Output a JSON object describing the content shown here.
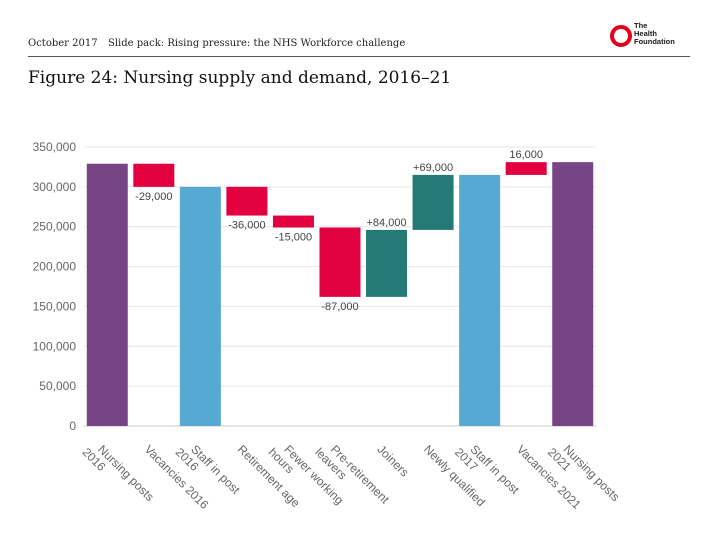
{
  "header": {
    "date": "October 2017",
    "title": "Slide pack: Rising pressure: the NHS Workforce challenge",
    "logo_lines": [
      "The",
      "Health",
      "Foundation"
    ]
  },
  "figure_title": "Figure 24: Nursing supply and demand, 2016–21",
  "colors": {
    "purple": "#774488",
    "blue": "#56a9d2",
    "red": "#e2003e",
    "teal": "#257a78",
    "grid": "#e6e6e6"
  },
  "chart_data": {
    "type": "waterfall",
    "title": "Figure 24: Nursing supply and demand, 2016–21",
    "ylim": [
      0,
      350000
    ],
    "yticks": [
      "0",
      "50,000",
      "100,000",
      "150,000",
      "200,000",
      "250,000",
      "300,000",
      "350,000"
    ],
    "bars": [
      {
        "label": "Nursing posts 2016",
        "lines": [
          "Nursing posts",
          "2016"
        ],
        "kind": "total",
        "start": 0,
        "end": 329000,
        "color": "purple",
        "value_label": ""
      },
      {
        "label": "Vacancies 2016",
        "lines": [
          "Vacancies 2016"
        ],
        "kind": "decrease",
        "start": 329000,
        "end": 300000,
        "color": "red",
        "value_label": "-29,000"
      },
      {
        "label": "Staff in post 2016",
        "lines": [
          "Staff in post",
          "2016"
        ],
        "kind": "total",
        "start": 0,
        "end": 300000,
        "color": "blue",
        "value_label": ""
      },
      {
        "label": "Retirement age",
        "lines": [
          "Retirement age"
        ],
        "kind": "decrease",
        "start": 300000,
        "end": 264000,
        "color": "red",
        "value_label": "-36,000"
      },
      {
        "label": "Fewer working hours",
        "lines": [
          "Fewer working",
          "hours"
        ],
        "kind": "decrease",
        "start": 264000,
        "end": 249000,
        "color": "red",
        "value_label": "-15,000"
      },
      {
        "label": "Pre-retirement leavers",
        "lines": [
          "Pre-retirement",
          "leavers"
        ],
        "kind": "decrease",
        "start": 249000,
        "end": 162000,
        "color": "red",
        "value_label": "-87,000"
      },
      {
        "label": "Joiners",
        "lines": [
          "Joiners"
        ],
        "kind": "increase",
        "start": 162000,
        "end": 246000,
        "color": "teal",
        "value_label": "+84,000"
      },
      {
        "label": "Newly qualified",
        "lines": [
          "Newly qualified"
        ],
        "kind": "increase",
        "start": 246000,
        "end": 315000,
        "color": "teal",
        "value_label": "+69,000"
      },
      {
        "label": "Staff in post 2017",
        "lines": [
          "Staff in post",
          "2017"
        ],
        "kind": "total",
        "start": 0,
        "end": 315000,
        "color": "blue",
        "value_label": ""
      },
      {
        "label": "Vacancies 2021",
        "lines": [
          "Vacancies 2021"
        ],
        "kind": "increase",
        "start": 315000,
        "end": 331000,
        "color": "red",
        "value_label": "16,000"
      },
      {
        "label": "Nursing posts 2021",
        "lines": [
          "Nursing posts",
          "2021"
        ],
        "kind": "total",
        "start": 0,
        "end": 331000,
        "color": "purple",
        "value_label": ""
      }
    ]
  }
}
